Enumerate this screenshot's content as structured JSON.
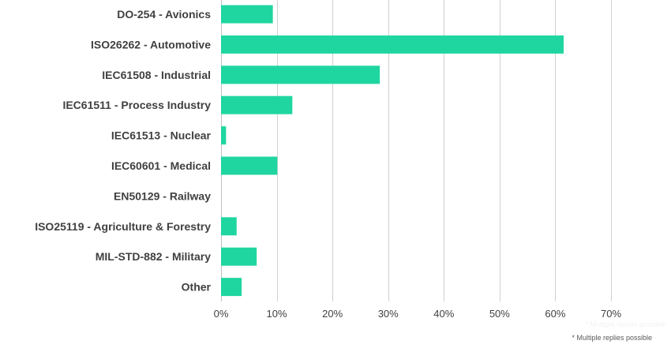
{
  "chart_data": {
    "type": "bar",
    "orientation": "horizontal",
    "categories": [
      "DO-254 - Avionics",
      "ISO26262 - Automotive",
      "IEC61508 - Industrial",
      "IEC61511 - Process Industry",
      "IEC61513 - Nuclear",
      "IEC60601 - Medical",
      "EN50129 - Railway",
      "ISO25119 - Agriculture & Forestry",
      "MIL-STD-882 - Military",
      "Other"
    ],
    "values": [
      9.3,
      61.5,
      28.5,
      12.8,
      0.9,
      10.1,
      0,
      2.8,
      6.4,
      3.7
    ],
    "unit": "%",
    "xlim": [
      0,
      70
    ],
    "xticks": [
      0,
      10,
      20,
      30,
      40,
      50,
      60,
      70
    ],
    "xtick_labels": [
      "0%",
      "10%",
      "20%",
      "30%",
      "40%",
      "50%",
      "60%",
      "70%"
    ],
    "bar_color": "#1fd6a0",
    "grid": true,
    "legend": "none"
  },
  "footnote": "* Multiple replies possible",
  "footnote_ghost": "* Multiple replies possible"
}
